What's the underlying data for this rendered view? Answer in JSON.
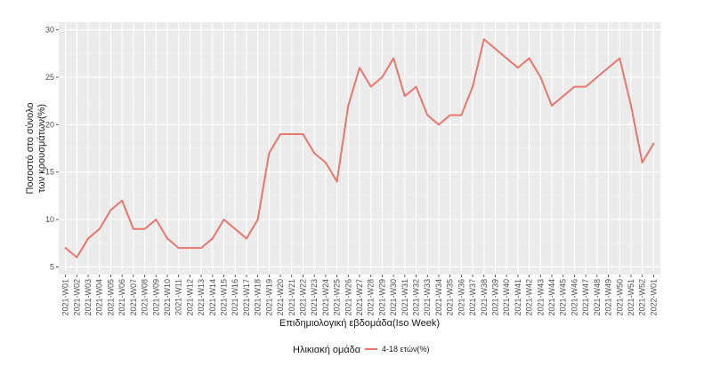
{
  "chart_data": {
    "type": "line",
    "title": "",
    "xlabel": "Επιδημιολογική εβδομάδα(Iso Week)",
    "ylabel_lines": [
      "Ποσοστό στο σύνολο",
      "των κρουσμάτων(%)"
    ],
    "ylim": [
      5,
      30
    ],
    "yticks": [
      5,
      10,
      15,
      20,
      25,
      30
    ],
    "grid": true,
    "legend": {
      "title": "Ηλικιακή ομάδα",
      "position": "bottom"
    },
    "categories": [
      "2021-W01",
      "2021-W02",
      "2021-W03",
      "2021-W04",
      "2021-W05",
      "2021-W06",
      "2021-W07",
      "2021-W08",
      "2021-W09",
      "2021-W10",
      "2021-W11",
      "2021-W12",
      "2021-W13",
      "2021-W14",
      "2021-W15",
      "2021-W16",
      "2021-W17",
      "2021-W18",
      "2021-W19",
      "2021-W20",
      "2021-W21",
      "2021-W22",
      "2021-W23",
      "2021-W24",
      "2021-W25",
      "2021-W26",
      "2021-W27",
      "2021-W28",
      "2021-W29",
      "2021-W30",
      "2021-W31",
      "2021-W32",
      "2021-W33",
      "2021-W34",
      "2021-W35",
      "2021-W36",
      "2021-W37",
      "2021-W38",
      "2021-W39",
      "2021-W40",
      "2021-W41",
      "2021-W42",
      "2021-W43",
      "2021-W44",
      "2021-W45",
      "2021-W46",
      "2021-W47",
      "2021-W48",
      "2021-W49",
      "2021-W50",
      "2021-W51",
      "2021-W52",
      "2022-W01"
    ],
    "series": [
      {
        "name": "4-18 ετών(%)",
        "color": "#e8776f",
        "values": [
          7,
          6,
          8,
          9,
          11,
          12,
          9,
          9,
          10,
          8,
          7,
          7,
          7,
          8,
          10,
          9,
          8,
          10,
          17,
          19,
          19,
          19,
          17,
          16,
          14,
          22,
          26,
          24,
          25,
          27,
          23,
          24,
          21,
          20,
          21,
          21,
          24,
          29,
          28,
          27,
          26,
          27,
          25,
          22,
          23,
          24,
          24,
          25,
          26,
          27,
          22,
          16,
          18
        ]
      }
    ]
  }
}
